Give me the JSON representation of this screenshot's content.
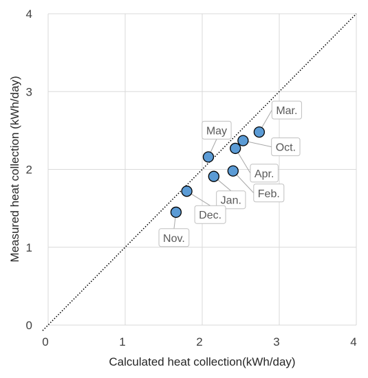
{
  "chart_data": {
    "type": "scatter",
    "xlabel": "Calculated heat collection(kWh/day)",
    "ylabel": "Measured heat collection (kWh/day)",
    "xlim": [
      0,
      4
    ],
    "ylim": [
      0,
      4
    ],
    "x_ticks": [
      "0",
      "1",
      "2",
      "3",
      "4"
    ],
    "y_ticks": [
      "0",
      "1",
      "2",
      "3",
      "4"
    ],
    "grid": true,
    "reference_line": {
      "style": "dotted",
      "from": [
        0,
        0
      ],
      "to": [
        4,
        4
      ]
    },
    "point_color": "#5b9bd5",
    "points": [
      {
        "label": "Mar.",
        "x": 2.74,
        "y": 2.48
      },
      {
        "label": "Oct.",
        "x": 2.53,
        "y": 2.37
      },
      {
        "label": "Apr.",
        "x": 2.43,
        "y": 2.27
      },
      {
        "label": "May",
        "x": 2.08,
        "y": 2.16
      },
      {
        "label": "Feb.",
        "x": 2.4,
        "y": 1.98
      },
      {
        "label": "Jan.",
        "x": 2.15,
        "y": 1.91
      },
      {
        "label": "Dec.",
        "x": 1.8,
        "y": 1.72
      },
      {
        "label": "Nov.",
        "x": 1.66,
        "y": 1.45
      }
    ]
  }
}
